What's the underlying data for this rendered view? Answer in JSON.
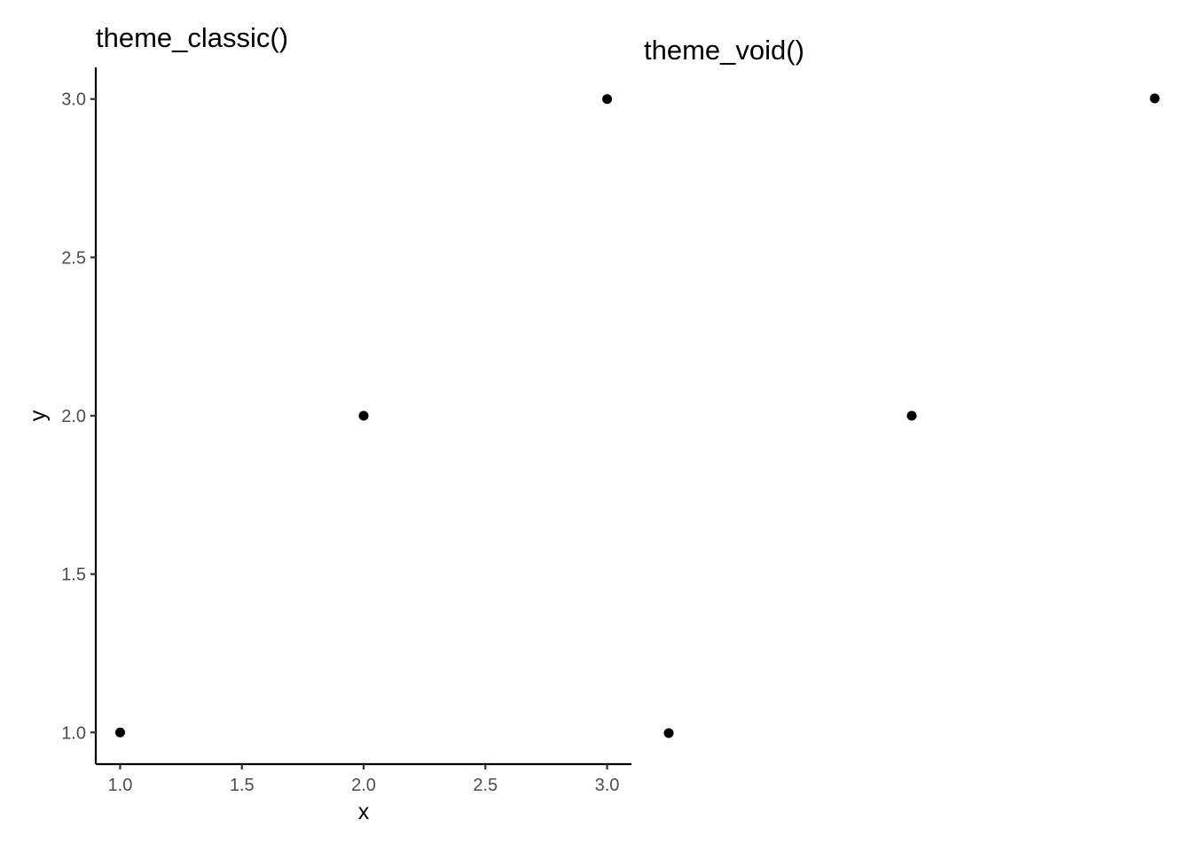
{
  "chart_data": [
    {
      "type": "scatter",
      "title": "theme_classic()",
      "xlabel": "x",
      "ylabel": "y",
      "x": [
        1,
        2,
        3
      ],
      "y": [
        1,
        2,
        3
      ],
      "xlim": [
        0.9,
        3.1
      ],
      "ylim": [
        0.9,
        3.1
      ],
      "xticks": [
        1.0,
        1.5,
        2.0,
        2.5,
        3.0
      ],
      "yticks": [
        1.0,
        1.5,
        2.0,
        2.5,
        3.0
      ],
      "xtick_labels": [
        "1.0",
        "1.5",
        "2.0",
        "2.5",
        "3.0"
      ],
      "ytick_labels": [
        "1.0",
        "1.5",
        "2.0",
        "2.5",
        "3.0"
      ],
      "grid": false,
      "axes_visible": true,
      "point_color": "#000000"
    },
    {
      "type": "scatter",
      "title": "theme_void()",
      "x": [
        1,
        2,
        3
      ],
      "y": [
        1,
        2,
        3
      ],
      "grid": false,
      "axes_visible": false,
      "point_color": "#000000"
    }
  ]
}
